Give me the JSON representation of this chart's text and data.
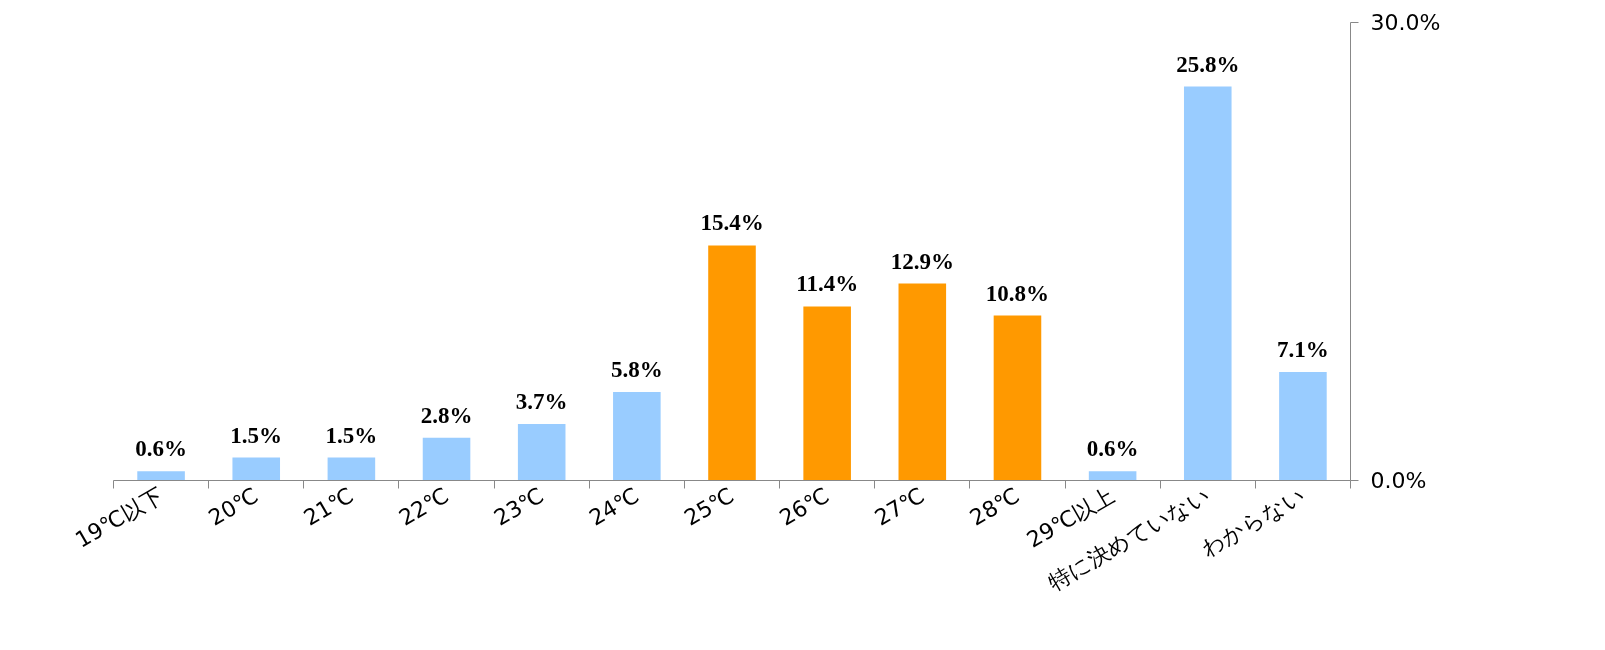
{
  "chart_data": {
    "type": "bar",
    "categories": [
      "19℃以下",
      "20℃",
      "21℃",
      "22℃",
      "23℃",
      "24℃",
      "25℃",
      "26℃",
      "27℃",
      "28℃",
      "29℃以上",
      "特に決めていない",
      "わからない"
    ],
    "values": [
      0.6,
      1.5,
      1.5,
      2.8,
      3.7,
      5.8,
      15.4,
      11.4,
      12.9,
      10.8,
      0.6,
      25.8,
      7.1
    ],
    "colors": [
      "#99ccff",
      "#99ccff",
      "#99ccff",
      "#99ccff",
      "#99ccff",
      "#99ccff",
      "#ff9900",
      "#ff9900",
      "#ff9900",
      "#ff9900",
      "#99ccff",
      "#99ccff",
      "#99ccff"
    ],
    "value_labels": [
      "0.6%",
      "1.5%",
      "1.5%",
      "2.8%",
      "3.7%",
      "5.8%",
      "15.4%",
      "11.4%",
      "12.9%",
      "10.8%",
      "0.6%",
      "25.8%",
      "7.1%"
    ],
    "ylim": [
      0,
      30
    ],
    "yticks": [
      {
        "value": 0,
        "label": "0.0%"
      },
      {
        "value": 30,
        "label": "30.0%"
      }
    ],
    "grid": false
  }
}
